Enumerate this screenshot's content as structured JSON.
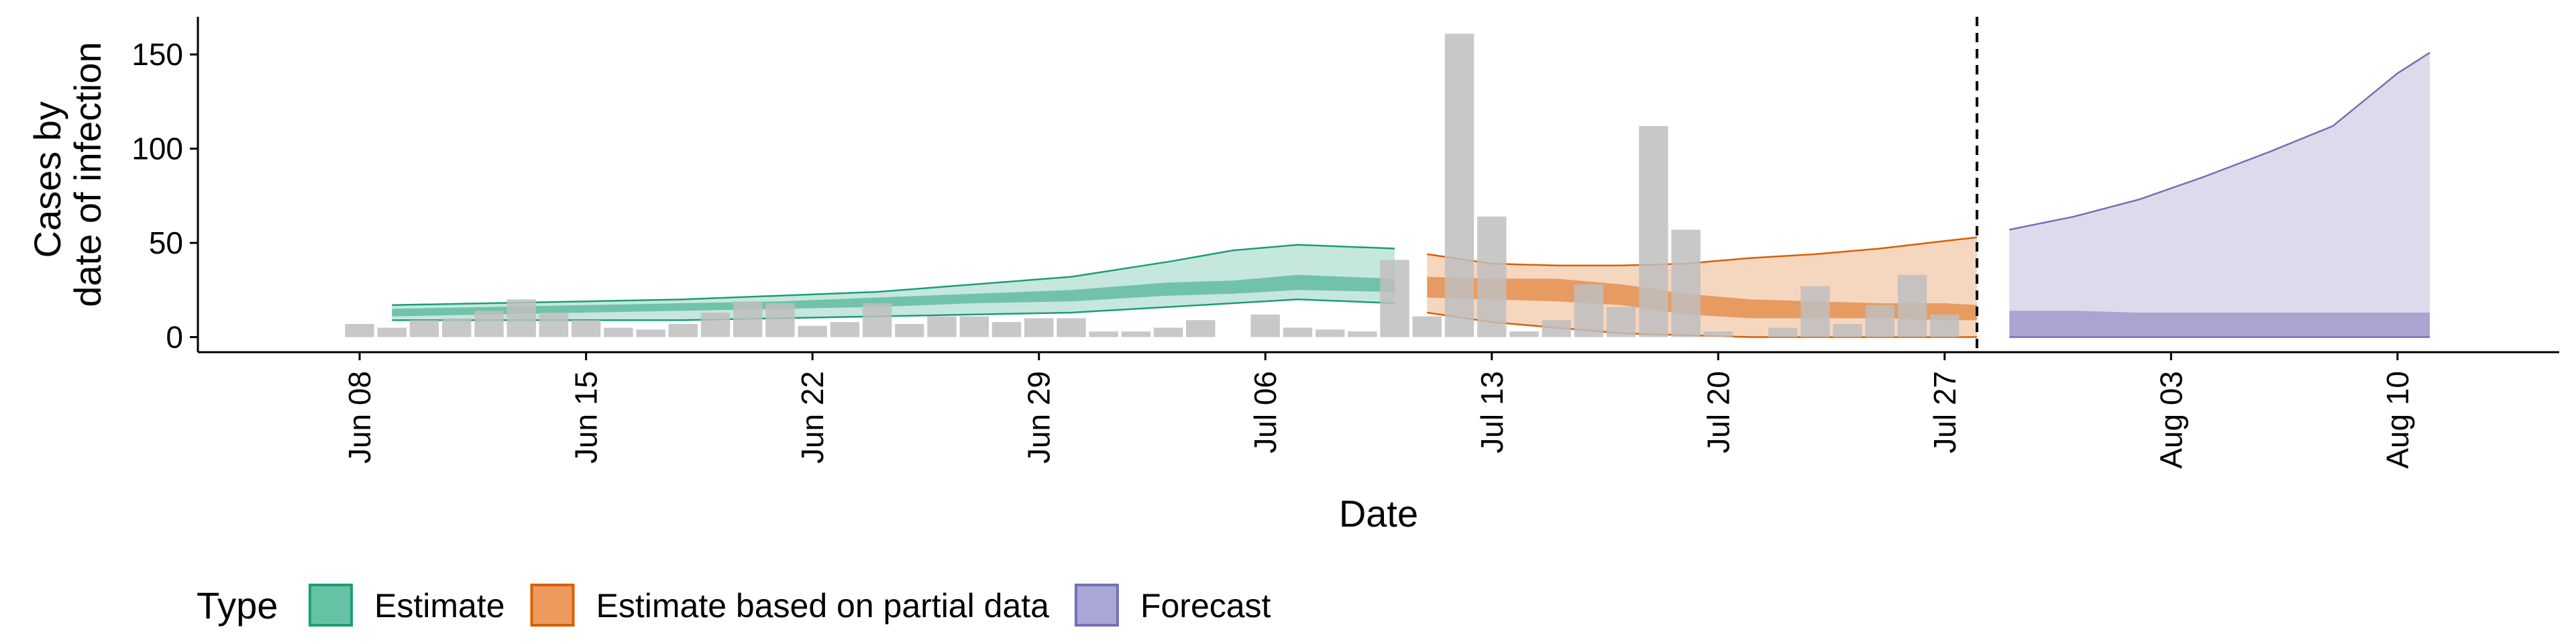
{
  "chart_data": {
    "type": "area",
    "xlabel": "Date",
    "ylabel_lines": [
      "Cases by",
      "date of infection"
    ],
    "x_ticks": [
      "Jun 08",
      "Jun 15",
      "Jun 22",
      "Jun 29",
      "Jul 06",
      "Jul 13",
      "Jul 20",
      "Jul 27",
      "Aug 03",
      "Aug 10"
    ],
    "x_tick_dates": [
      "2020-06-08",
      "2020-06-15",
      "2020-06-22",
      "2020-06-29",
      "2020-07-06",
      "2020-07-13",
      "2020-07-20",
      "2020-07-27",
      "2020-08-03",
      "2020-08-10"
    ],
    "y_ticks": [
      0,
      50,
      100,
      150
    ],
    "xlim": [
      "2020-06-03",
      "2020-08-15"
    ],
    "ylim": [
      -8,
      170
    ],
    "grid": false,
    "forecast_start_line": "2020-07-28",
    "legend": {
      "title": "Type",
      "position": "bottom-left",
      "entries": [
        {
          "label": "Estimate",
          "fill": "#66C2A5",
          "stroke": "#1B9E77"
        },
        {
          "label": "Estimate based on partial data",
          "fill": "#EE9A5E",
          "stroke": "#D95F02"
        },
        {
          "label": "Forecast",
          "fill": "#A9A7D6",
          "stroke": "#7570B3"
        }
      ]
    },
    "colors": {
      "bars": "#BEBEBE",
      "estimate": "#1B9E77",
      "partial": "#D95F02",
      "forecast": "#7570B3"
    },
    "reported_cases": {
      "dates": [
        "2020-06-08",
        "2020-06-09",
        "2020-06-10",
        "2020-06-11",
        "2020-06-12",
        "2020-06-13",
        "2020-06-14",
        "2020-06-15",
        "2020-06-16",
        "2020-06-17",
        "2020-06-18",
        "2020-06-19",
        "2020-06-20",
        "2020-06-21",
        "2020-06-22",
        "2020-06-23",
        "2020-06-24",
        "2020-06-25",
        "2020-06-26",
        "2020-06-27",
        "2020-06-28",
        "2020-06-29",
        "2020-06-30",
        "2020-07-01",
        "2020-07-02",
        "2020-07-03",
        "2020-07-04",
        "2020-07-05",
        "2020-07-06",
        "2020-07-07",
        "2020-07-08",
        "2020-07-09",
        "2020-07-10",
        "2020-07-11",
        "2020-07-12",
        "2020-07-13",
        "2020-07-14",
        "2020-07-15",
        "2020-07-16",
        "2020-07-17",
        "2020-07-18",
        "2020-07-19",
        "2020-07-20",
        "2020-07-21",
        "2020-07-22",
        "2020-07-23",
        "2020-07-24",
        "2020-07-25",
        "2020-07-26",
        "2020-07-27",
        "2020-07-28"
      ],
      "values": [
        7,
        5,
        9,
        10,
        14,
        20,
        13,
        9,
        5,
        4,
        7,
        13,
        19,
        18,
        6,
        8,
        18,
        7,
        11,
        11,
        8,
        10,
        10,
        3,
        3,
        5,
        9,
        0,
        12,
        5,
        4,
        3,
        41,
        11,
        161,
        64,
        3,
        9,
        28,
        16,
        112,
        57,
        3,
        0,
        5,
        27,
        7,
        17,
        33,
        12,
        0
      ]
    },
    "estimate": {
      "dates": [
        "2020-06-09",
        "2020-06-12",
        "2020-06-15",
        "2020-06-18",
        "2020-06-21",
        "2020-06-24",
        "2020-06-27",
        "2020-06-30",
        "2020-07-03",
        "2020-07-05",
        "2020-07-07",
        "2020-07-10"
      ],
      "lower_90": [
        9,
        9,
        9,
        9,
        10,
        11,
        12,
        13,
        16,
        18,
        20,
        18
      ],
      "lower_50": [
        11,
        12,
        13,
        14,
        15,
        16,
        18,
        19,
        22,
        23,
        25,
        24
      ],
      "upper_50": [
        15,
        16,
        17,
        18,
        19,
        21,
        23,
        25,
        29,
        30,
        33,
        31
      ],
      "upper_90": [
        17,
        18,
        19,
        20,
        22,
        24,
        28,
        32,
        40,
        46,
        49,
        47
      ]
    },
    "estimate_partial": {
      "dates": [
        "2020-07-11",
        "2020-07-13",
        "2020-07-15",
        "2020-07-17",
        "2020-07-19",
        "2020-07-21",
        "2020-07-23",
        "2020-07-25",
        "2020-07-27",
        "2020-07-28"
      ],
      "lower_90": [
        13,
        8,
        5,
        2,
        1,
        0,
        0,
        0,
        0,
        0
      ],
      "lower_50": [
        21,
        20,
        19,
        17,
        12,
        10,
        10,
        10,
        9,
        9
      ],
      "upper_50": [
        32,
        31,
        31,
        28,
        23,
        20,
        19,
        18,
        18,
        17
      ],
      "upper_90": [
        44,
        39,
        38,
        38,
        39,
        42,
        44,
        47,
        51,
        53
      ]
    },
    "forecast": {
      "dates": [
        "2020-07-29",
        "2020-07-31",
        "2020-08-02",
        "2020-08-04",
        "2020-08-06",
        "2020-08-08",
        "2020-08-10",
        "2020-08-11"
      ],
      "lower_90": [
        0,
        0,
        0,
        0,
        0,
        0,
        0,
        0
      ],
      "lower_50": [
        0,
        0,
        0,
        0,
        0,
        0,
        0,
        0
      ],
      "upper_50": [
        14,
        14,
        13,
        13,
        13,
        13,
        13,
        13
      ],
      "upper_90": [
        57,
        64,
        73,
        85,
        98,
        112,
        140,
        151
      ]
    }
  }
}
